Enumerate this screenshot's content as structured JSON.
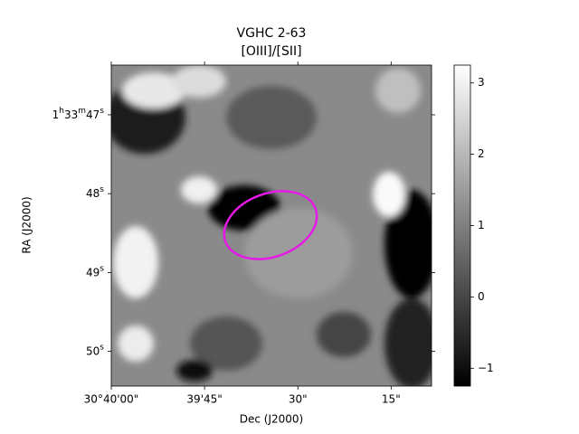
{
  "chart_data": {
    "type": "image",
    "title": "VGHC 2-63",
    "subtitle": "[OIII]/[SII]",
    "x_label": "Dec (J2000)",
    "y_label": "RA (J2000)",
    "xlim": [
      2400,
      2348.5
    ],
    "xticks": [
      {
        "value": 2400,
        "label": "30°40'00\""
      },
      {
        "value": 2385,
        "label": "39'45\""
      },
      {
        "value": 2370,
        "label": "30\""
      },
      {
        "value": 2355,
        "label": "15\""
      }
    ],
    "ylim": [
      50.44,
      46.37
    ],
    "yticks": [
      {
        "value": 47,
        "label": "1h33m47s"
      },
      {
        "value": 48,
        "label": "48s"
      },
      {
        "value": 49,
        "label": "49s"
      },
      {
        "value": 50,
        "label": "50s"
      }
    ],
    "colorbar": {
      "lim": [
        -1.25,
        3.25
      ],
      "ticks": [
        {
          "value": -1,
          "label": "−1"
        },
        0,
        1,
        2,
        3
      ],
      "colormap": "gray"
    }
  }
}
